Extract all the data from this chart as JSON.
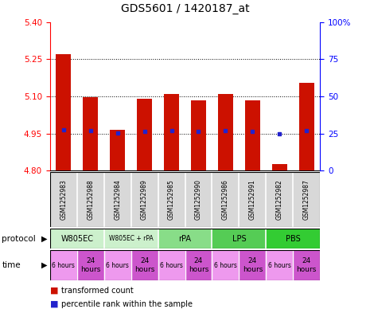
{
  "title": "GDS5601 / 1420187_at",
  "samples": [
    "GSM1252983",
    "GSM1252988",
    "GSM1252984",
    "GSM1252989",
    "GSM1252985",
    "GSM1252990",
    "GSM1252986",
    "GSM1252991",
    "GSM1252982",
    "GSM1252987"
  ],
  "bar_values": [
    5.27,
    5.095,
    4.963,
    5.09,
    5.108,
    5.085,
    5.108,
    5.085,
    4.825,
    5.155
  ],
  "blue_dot_values": [
    4.965,
    4.962,
    4.951,
    4.958,
    4.962,
    4.958,
    4.962,
    4.957,
    4.95,
    4.96
  ],
  "ymin": 4.8,
  "ymax": 5.4,
  "yticks_left": [
    4.8,
    4.95,
    5.1,
    5.25,
    5.4
  ],
  "yticks_right": [
    0,
    25,
    50,
    75,
    100
  ],
  "grid_lines": [
    4.95,
    5.1,
    5.25
  ],
  "bar_color": "#cc1100",
  "dot_color": "#2222cc",
  "protocols": [
    {
      "label": "W805EC",
      "start": 0,
      "end": 2,
      "color": "#ccf0cc"
    },
    {
      "label": "W805EC + rPA",
      "start": 2,
      "end": 4,
      "color": "#ccf0cc"
    },
    {
      "label": "rPA",
      "start": 4,
      "end": 6,
      "color": "#88dd88"
    },
    {
      "label": "LPS",
      "start": 6,
      "end": 8,
      "color": "#55cc55"
    },
    {
      "label": "PBS",
      "start": 8,
      "end": 10,
      "color": "#33cc33"
    }
  ],
  "time_labels": [
    "6 hours",
    "24\nhours",
    "6 hours",
    "24\nhours",
    "6 hours",
    "24\nhours",
    "6 hours",
    "24\nhours",
    "6 hours",
    "24\nhours"
  ],
  "time_colors_light": "#ee99ee",
  "time_colors_dark": "#cc55cc",
  "sample_bg": "#d8d8d8",
  "legend_red_label": "transformed count",
  "legend_blue_label": "percentile rank within the sample"
}
